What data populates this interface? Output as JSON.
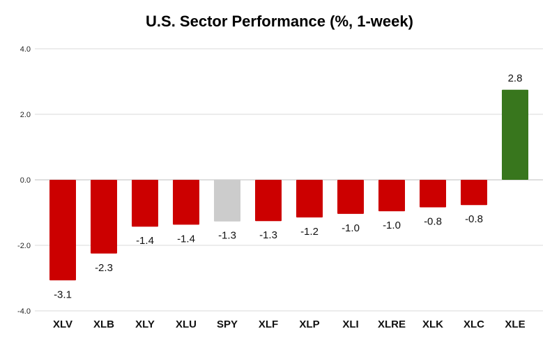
{
  "chart_data": {
    "type": "bar",
    "title": "U.S. Sector Performance (%, 1-week)",
    "xlabel": "",
    "ylabel": "",
    "ylim": [
      -4,
      4
    ],
    "yticks": [
      4,
      2,
      0,
      -2,
      -4
    ],
    "ytick_labels": [
      "4.0",
      "2.0",
      "0.0",
      "-2.0",
      "-4.0"
    ],
    "grid": true,
    "categories": [
      "XLV",
      "XLB",
      "XLY",
      "XLU",
      "SPY",
      "XLF",
      "XLP",
      "XLI",
      "XLRE",
      "XLK",
      "XLC",
      "XLE"
    ],
    "values": [
      -3.07,
      -2.25,
      -1.43,
      -1.37,
      -1.27,
      -1.26,
      -1.15,
      -1.04,
      -0.96,
      -0.84,
      -0.77,
      2.75
    ],
    "labels": [
      "-3.1",
      "-2.3",
      "-1.4",
      "-1.4",
      "-1.3",
      "-1.3",
      "-1.2",
      "-1.0",
      "-1.0",
      "-0.8",
      "-0.8",
      "2.8"
    ],
    "colors": {
      "negative": "#cc0000",
      "benchmark": "#cccccc",
      "positive": "#38761d"
    },
    "benchmark_category": "SPY"
  }
}
